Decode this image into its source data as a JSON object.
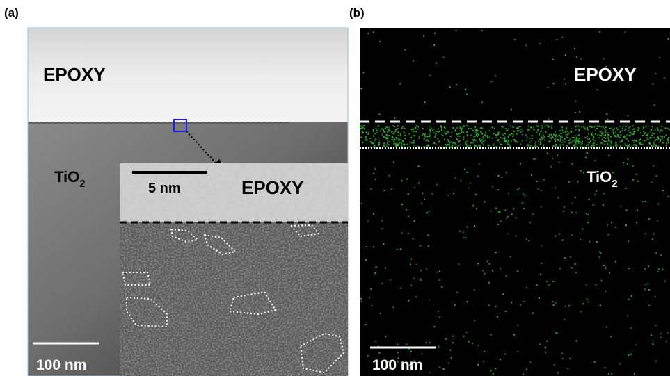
{
  "panels": [
    {
      "label": "(a)",
      "upper_label": "EPOXY",
      "lower_label": {
        "text": "TiO",
        "subscript": "2"
      },
      "scale_bar": "100 nm",
      "inset": {
        "scale_bar": "5 nm",
        "label": "EPOXY"
      }
    },
    {
      "label": "(b)",
      "upper_label": "EPOXY",
      "lower_label": {
        "text": "TiO",
        "subscript": "2"
      },
      "scale_bar": "100 nm"
    }
  ]
}
